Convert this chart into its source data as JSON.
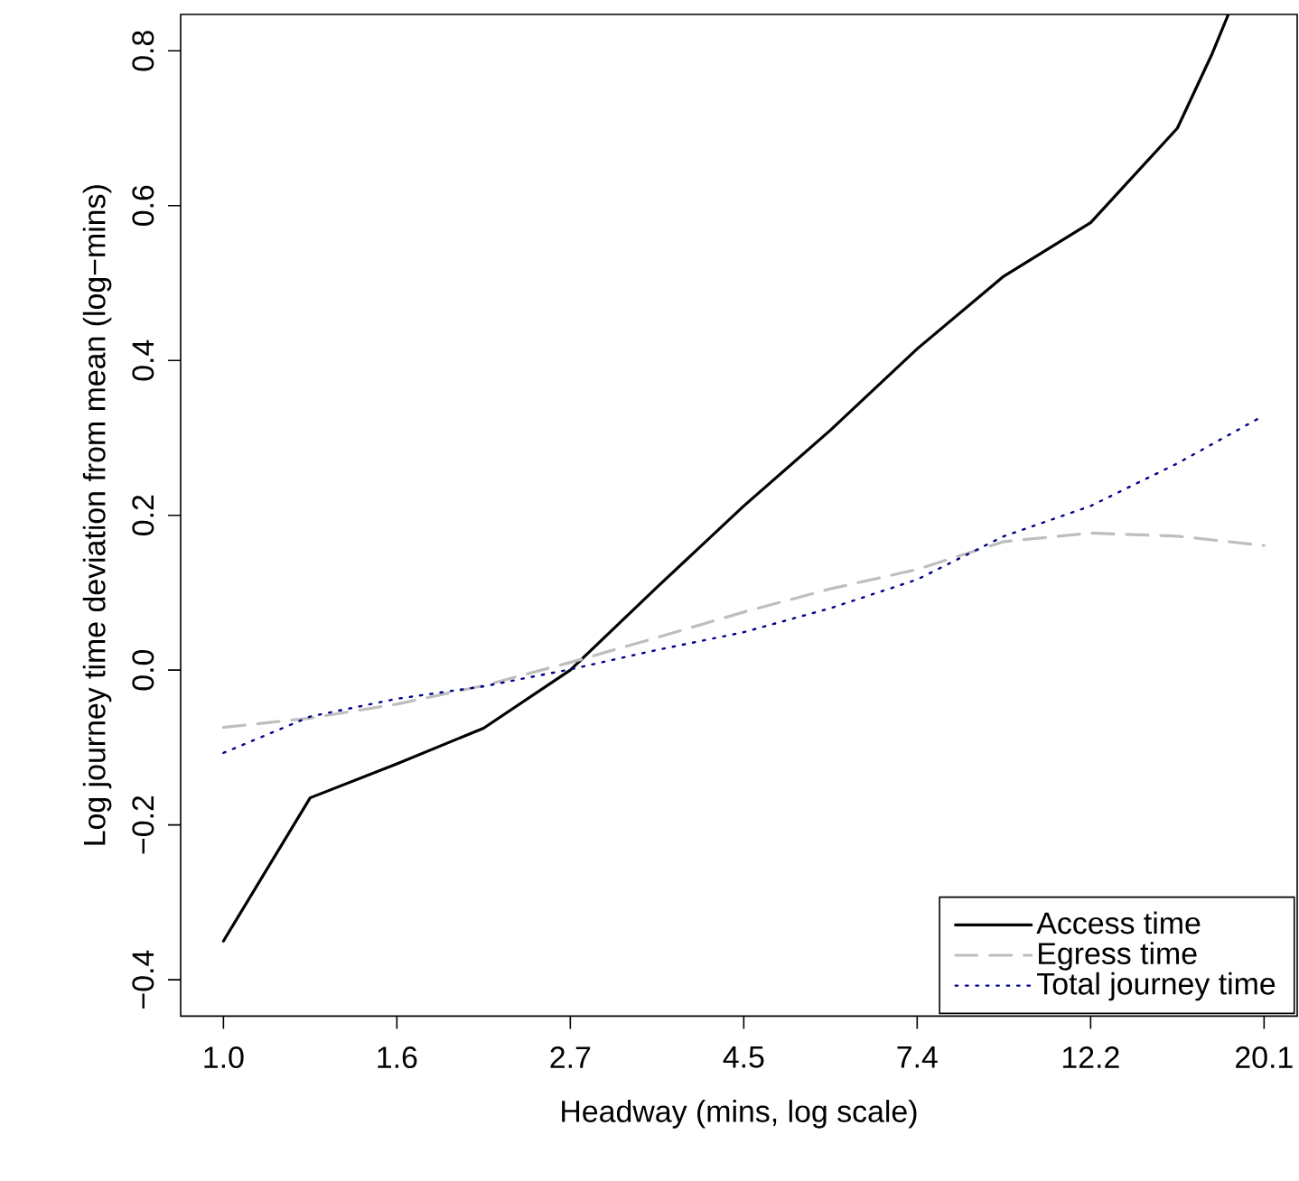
{
  "chart_data": {
    "type": "line",
    "xlabel": "Headway (mins, log scale)",
    "ylabel": "Log journey time deviation from mean (log−mins)",
    "log": "x",
    "legend": "bottom right",
    "x": [
      1.0,
      1.284,
      1.6487,
      2.117,
      2.7183,
      3.49,
      4.4817,
      5.755,
      7.389,
      9.488,
      12.1825,
      15.643,
      20.0855
    ],
    "xlim": [
      0.884,
      22.1
    ],
    "ylim": [
      -0.447,
      0.847
    ],
    "xticks": [
      {
        "value": 1.0,
        "label": "1.0"
      },
      {
        "value": 1.6487,
        "label": "1.6"
      },
      {
        "value": 2.7183,
        "label": "2.7"
      },
      {
        "value": 4.4817,
        "label": "4.5"
      },
      {
        "value": 7.389,
        "label": "7.4"
      },
      {
        "value": 12.1825,
        "label": "12.2"
      },
      {
        "value": 20.0855,
        "label": "20.1"
      }
    ],
    "yticks": [
      {
        "value": -0.4,
        "label": "−0.4"
      },
      {
        "value": -0.2,
        "label": "−0.2"
      },
      {
        "value": 0.0,
        "label": "0.0"
      },
      {
        "value": 0.2,
        "label": "0.2"
      },
      {
        "value": 0.4,
        "label": "0.4"
      },
      {
        "value": 0.6,
        "label": "0.6"
      },
      {
        "value": 0.8,
        "label": "0.8"
      }
    ],
    "series": [
      {
        "name": "Access time",
        "color": "#000000",
        "line_style": "solid",
        "x": [
          1.0,
          1.284,
          1.6487,
          2.117,
          2.7183,
          3.49,
          4.4817,
          5.755,
          7.389,
          9.488,
          12.1825,
          15.643,
          17.29,
          18.12
        ],
        "values": [
          -0.35,
          -0.165,
          -0.121,
          -0.075,
          0.0,
          0.107,
          0.212,
          0.31,
          0.415,
          0.509,
          0.578,
          0.7,
          0.796,
          0.847
        ]
      },
      {
        "name": "Egress time",
        "color": "#bebebe",
        "line_style": "dashed",
        "values": [
          -0.074,
          -0.062,
          -0.044,
          -0.02,
          0.01,
          0.042,
          0.075,
          0.105,
          0.13,
          0.166,
          0.177,
          0.173,
          0.161
        ]
      },
      {
        "name": "Total journey time",
        "color": "#00008b",
        "line_style": "dotted",
        "values": [
          -0.107,
          -0.06,
          -0.037,
          -0.021,
          0.001,
          0.026,
          0.049,
          0.08,
          0.117,
          0.173,
          0.212,
          0.267,
          0.329
        ]
      }
    ]
  }
}
